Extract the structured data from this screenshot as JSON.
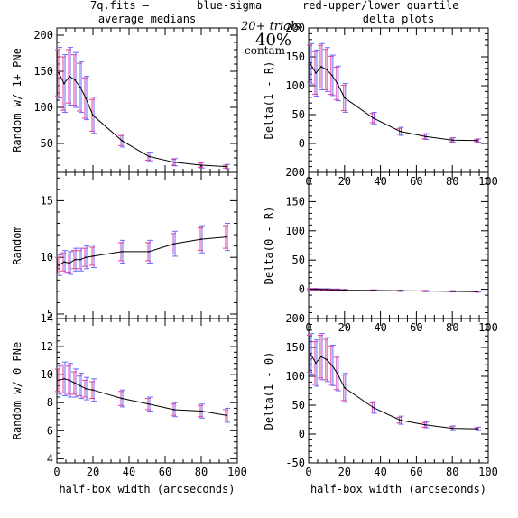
{
  "header": {
    "file": "7q.fits  —",
    "blue": "blue-sigma",
    "red": "red-upper/lower quartile",
    "colors": {
      "file": "#000000",
      "blue": "#3a3aff",
      "red": "#ff4040"
    }
  },
  "annotations": {
    "trials": "20+ trials",
    "percent": "40%",
    "contam": "contam"
  },
  "colors": {
    "line": "#000000",
    "sigma": "#6a6aff",
    "quartile": "#e040a0",
    "axis": "#000000"
  },
  "chart_data": [
    {
      "type": "line",
      "title": "average medians",
      "xlabel": "",
      "ylabel": "Random w/ 1+ PNe",
      "xlim": [
        0,
        100
      ],
      "ylim": [
        10,
        210
      ],
      "xticks": [
        0,
        20,
        40,
        60,
        80,
        100
      ],
      "xtick_labels": false,
      "yticks": [
        50,
        100,
        150,
        200
      ],
      "x": [
        1,
        4,
        7,
        10,
        13,
        16,
        20,
        36,
        51,
        65,
        80,
        94
      ],
      "y": [
        148,
        133,
        143,
        138,
        128,
        113,
        89,
        54,
        32,
        24,
        20,
        18
      ],
      "sigma": [
        35,
        40,
        40,
        38,
        35,
        30,
        25,
        9,
        6,
        5,
        4,
        3
      ],
      "quartile": [
        32,
        37,
        37,
        35,
        33,
        28,
        22,
        7,
        5,
        4,
        3,
        2
      ]
    },
    {
      "type": "line",
      "title": "delta plots",
      "xlabel": "",
      "ylabel": "Delta(1 - R)",
      "xlim": [
        0,
        100
      ],
      "ylim": [
        -50,
        200
      ],
      "xticks": [
        0,
        20,
        40,
        60,
        80,
        100
      ],
      "xtick_labels": true,
      "yticks": [
        0,
        50,
        100,
        150,
        200
      ],
      "x": [
        1,
        4,
        7,
        10,
        13,
        16,
        20,
        36,
        51,
        65,
        80,
        94
      ],
      "y": [
        138,
        122,
        133,
        128,
        118,
        104,
        79,
        44,
        21,
        12,
        6,
        5
      ],
      "sigma": [
        35,
        40,
        40,
        38,
        35,
        30,
        25,
        10,
        7,
        5,
        4,
        3
      ],
      "quartile": [
        32,
        37,
        37,
        35,
        33,
        28,
        22,
        8,
        5,
        4,
        3,
        2
      ]
    },
    {
      "type": "line",
      "title": "",
      "xlabel": "",
      "ylabel": "Random",
      "xlim": [
        0,
        100
      ],
      "ylim": [
        4.6,
        17.5
      ],
      "xticks": [
        0,
        20,
        40,
        60,
        80,
        100
      ],
      "xtick_labels": false,
      "yticks": [
        5,
        10,
        15
      ],
      "x": [
        1,
        4,
        7,
        10,
        13,
        16,
        20,
        36,
        51,
        65,
        80,
        94
      ],
      "y": [
        9.3,
        9.6,
        9.5,
        9.8,
        9.8,
        10.0,
        10.1,
        10.5,
        10.5,
        11.2,
        11.6,
        11.8
      ],
      "sigma": [
        0.9,
        1.0,
        1.0,
        1.0,
        1.0,
        1.0,
        1.0,
        1.0,
        1.0,
        1.1,
        1.2,
        1.2
      ],
      "quartile": [
        0.7,
        0.8,
        0.8,
        0.8,
        0.8,
        0.8,
        0.8,
        0.8,
        0.8,
        0.9,
        1.0,
        1.0
      ]
    },
    {
      "type": "line",
      "title": "",
      "xlabel": "",
      "ylabel": "Delta(0 - R)",
      "xlim": [
        0,
        100
      ],
      "ylim": [
        -50,
        200
      ],
      "xticks": [
        0,
        20,
        40,
        60,
        80,
        100
      ],
      "xtick_labels": true,
      "yticks": [
        0,
        50,
        100,
        150,
        200
      ],
      "x": [
        1,
        4,
        7,
        10,
        13,
        16,
        20,
        36,
        51,
        65,
        80,
        94
      ],
      "y": [
        0,
        0,
        -0.5,
        -0.5,
        -1,
        -1,
        -1.5,
        -2,
        -2.5,
        -3,
        -3.5,
        -4
      ],
      "sigma": [
        1.5,
        1.5,
        1.5,
        1.5,
        1.5,
        1.5,
        1.5,
        1,
        1,
        1,
        1,
        1
      ],
      "quartile": [
        1,
        1,
        1,
        1,
        1,
        1,
        1,
        0.8,
        0.8,
        0.8,
        0.8,
        0.8
      ]
    },
    {
      "type": "line",
      "title": "",
      "xlabel": "half-box width (arcseconds)",
      "ylabel": "Random w/ 0 PNe",
      "xlim": [
        0,
        100
      ],
      "ylim": [
        3.7,
        14
      ],
      "xticks": [
        0,
        20,
        40,
        60,
        80,
        100
      ],
      "xtick_labels": true,
      "yticks": [
        4,
        6,
        8,
        10,
        12,
        14
      ],
      "x": [
        1,
        4,
        7,
        10,
        13,
        16,
        20,
        36,
        51,
        65,
        80,
        94
      ],
      "y": [
        9.6,
        9.7,
        9.6,
        9.4,
        9.2,
        9.0,
        8.9,
        8.3,
        7.9,
        7.5,
        7.4,
        7.1
      ],
      "sigma": [
        1.0,
        1.2,
        1.2,
        1.0,
        0.9,
        0.8,
        0.8,
        0.6,
        0.5,
        0.5,
        0.5,
        0.5
      ],
      "quartile": [
        0.8,
        1.0,
        1.0,
        0.8,
        0.7,
        0.6,
        0.6,
        0.5,
        0.4,
        0.4,
        0.4,
        0.4
      ]
    },
    {
      "type": "line",
      "title": "",
      "xlabel": "half-box width (arcseconds)",
      "ylabel": "Delta(1 - 0)",
      "xlim": [
        0,
        100
      ],
      "ylim": [
        -50,
        200
      ],
      "xticks": [
        0,
        20,
        40,
        60,
        80,
        100
      ],
      "xtick_labels": true,
      "yticks": [
        -50,
        0,
        50,
        100,
        150,
        200
      ],
      "x": [
        1,
        4,
        7,
        10,
        13,
        16,
        20,
        36,
        51,
        65,
        80,
        94
      ],
      "y": [
        139,
        123,
        134,
        129,
        119,
        105,
        80,
        46,
        24,
        16,
        10,
        9
      ],
      "sigma": [
        35,
        40,
        40,
        38,
        35,
        30,
        25,
        10,
        7,
        5,
        4,
        3
      ],
      "quartile": [
        32,
        37,
        37,
        35,
        33,
        28,
        22,
        8,
        5,
        4,
        3,
        2
      ]
    }
  ]
}
